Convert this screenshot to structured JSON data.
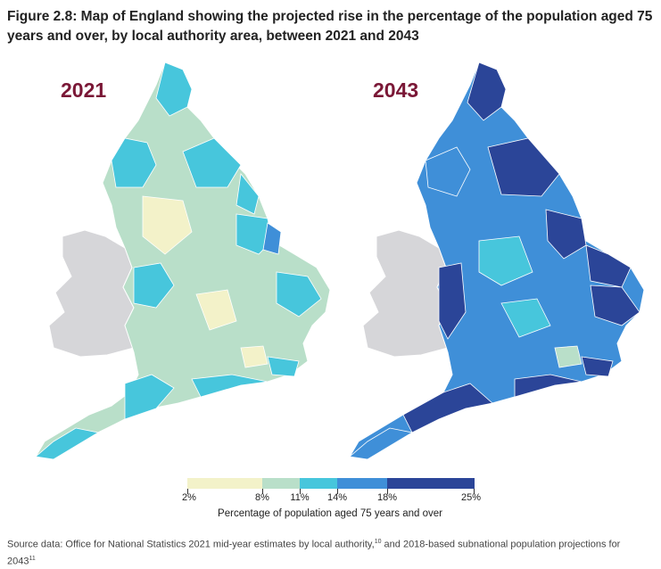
{
  "figure": {
    "title": "Figure 2.8: Map of England showing the projected rise in the percentage of the population aged 75 years and over, by local authority area, between 2021 and 2043"
  },
  "maps": [
    {
      "year": "2021",
      "dominant_class": "8%–11%"
    },
    {
      "year": "2043",
      "dominant_class": "14%–25%"
    }
  ],
  "legend": {
    "title": "Percentage of population aged 75 years and over",
    "ticks": [
      "2%",
      "8%",
      "11%",
      "14%",
      "18%",
      "25%"
    ],
    "colors": [
      "#f3f2c9",
      "#b9dfc9",
      "#47c6dc",
      "#3f8fd8",
      "#2b4598"
    ]
  },
  "colors": {
    "wales": "#d6d6d9",
    "title_year": "#7a1736",
    "boundary": "#ffffff"
  },
  "source": {
    "text": "Source data: Office for National Statistics 2021 mid-year estimates by local authority,",
    "ref1": "10",
    "text2": " and 2018-based subnational population projections for 2043",
    "ref2": "11"
  }
}
